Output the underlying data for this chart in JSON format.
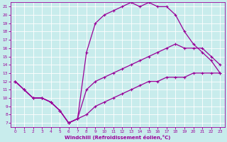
{
  "xlabel": "Windchill (Refroidissement éolien,°C)",
  "bg_color": "#c8ecec",
  "line_color": "#990099",
  "xlim": [
    -0.5,
    23.5
  ],
  "ylim": [
    6.5,
    21.5
  ],
  "xticks": [
    0,
    1,
    2,
    3,
    4,
    5,
    6,
    7,
    8,
    9,
    10,
    11,
    12,
    13,
    14,
    15,
    16,
    17,
    18,
    19,
    20,
    21,
    22,
    23
  ],
  "yticks": [
    7,
    8,
    9,
    10,
    11,
    12,
    13,
    14,
    15,
    16,
    17,
    18,
    19,
    20,
    21
  ],
  "curve1_x": [
    0,
    1,
    2,
    3,
    4,
    5,
    6,
    7,
    8,
    9,
    10,
    11,
    12,
    13,
    14,
    15,
    16,
    17,
    18,
    19,
    20,
    21,
    22,
    23
  ],
  "curve1_y": [
    12,
    11,
    10,
    10,
    9.5,
    8.5,
    7,
    7.5,
    8,
    9,
    9.5,
    10,
    10.5,
    11,
    11.5,
    12,
    12,
    12.5,
    12.5,
    12.5,
    13,
    13,
    13,
    13
  ],
  "curve2_x": [
    0,
    1,
    2,
    3,
    4,
    5,
    6,
    7,
    8,
    9,
    10,
    11,
    12,
    13,
    14,
    15,
    16,
    17,
    18,
    19,
    20,
    21,
    22,
    23
  ],
  "curve2_y": [
    12,
    11,
    10,
    10,
    9.5,
    8.5,
    7,
    7.5,
    15.5,
    19,
    20,
    20.5,
    21,
    21.5,
    21,
    21.5,
    21,
    21,
    20,
    18,
    16.5,
    15.5,
    14.5,
    13
  ],
  "curve3_x": [
    0,
    1,
    2,
    3,
    4,
    5,
    6,
    7,
    8,
    9,
    10,
    11,
    12,
    13,
    14,
    15,
    16,
    17,
    18,
    19,
    20,
    21,
    22,
    23
  ],
  "curve3_y": [
    12,
    11,
    10,
    10,
    9.5,
    8.5,
    7,
    7.5,
    11,
    12,
    12.5,
    13,
    13.5,
    14,
    14.5,
    15,
    15.5,
    16,
    16.5,
    16,
    16,
    16,
    15,
    14
  ],
  "marker": "+",
  "markersize": 3.5,
  "linewidth": 0.9
}
